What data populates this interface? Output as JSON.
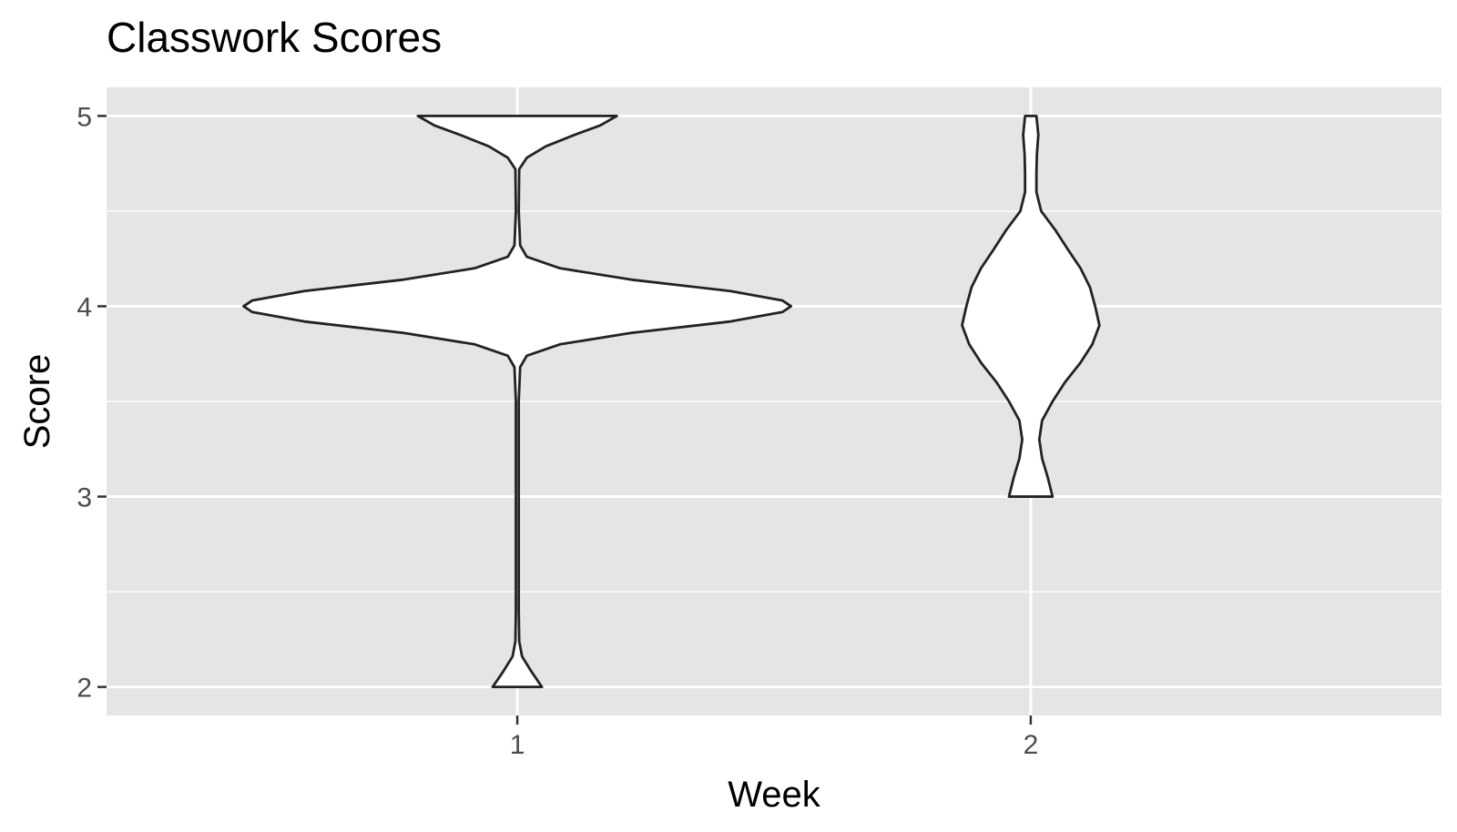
{
  "chart_data": {
    "type": "violin",
    "title": "Classwork Scores",
    "xlabel": "Week",
    "ylabel": "Score",
    "categories": [
      "1",
      "2"
    ],
    "ylim": [
      1.85,
      5.15
    ],
    "y_ticks": [
      2,
      3,
      4,
      5
    ],
    "y_minor_ticks": [
      2.5,
      3.5,
      4.5
    ],
    "grid": true,
    "legend": "none",
    "colors": {
      "panel": "#e5e5e5",
      "grid": "#ffffff",
      "fill": "#ffffff",
      "outline": "#222222",
      "tick_text": "#4d4d4d"
    },
    "series": [
      {
        "category": "1",
        "density": [
          [
            2.0,
            0.052
          ],
          [
            2.08,
            0.03
          ],
          [
            2.16,
            0.01
          ],
          [
            2.24,
            0.004
          ],
          [
            2.4,
            0.003
          ],
          [
            3.0,
            0.003
          ],
          [
            3.5,
            0.003
          ],
          [
            3.68,
            0.006
          ],
          [
            3.74,
            0.02
          ],
          [
            3.8,
            0.09
          ],
          [
            3.86,
            0.24
          ],
          [
            3.92,
            0.45
          ],
          [
            3.97,
            0.56
          ],
          [
            4.0,
            0.578
          ],
          [
            4.03,
            0.56
          ],
          [
            4.08,
            0.45
          ],
          [
            4.14,
            0.24
          ],
          [
            4.2,
            0.09
          ],
          [
            4.26,
            0.02
          ],
          [
            4.32,
            0.006
          ],
          [
            4.5,
            0.003
          ],
          [
            4.72,
            0.004
          ],
          [
            4.78,
            0.02
          ],
          [
            4.84,
            0.06
          ],
          [
            4.9,
            0.12
          ],
          [
            4.95,
            0.175
          ],
          [
            5.0,
            0.21
          ]
        ]
      },
      {
        "category": "2",
        "density": [
          [
            3.0,
            0.046
          ],
          [
            3.1,
            0.036
          ],
          [
            3.2,
            0.024
          ],
          [
            3.3,
            0.018
          ],
          [
            3.4,
            0.024
          ],
          [
            3.5,
            0.046
          ],
          [
            3.6,
            0.072
          ],
          [
            3.7,
            0.104
          ],
          [
            3.8,
            0.13
          ],
          [
            3.9,
            0.145
          ],
          [
            4.0,
            0.136
          ],
          [
            4.1,
            0.125
          ],
          [
            4.2,
            0.105
          ],
          [
            4.3,
            0.078
          ],
          [
            4.4,
            0.052
          ],
          [
            4.5,
            0.022
          ],
          [
            4.6,
            0.012
          ],
          [
            4.7,
            0.012
          ],
          [
            4.8,
            0.013
          ],
          [
            4.9,
            0.016
          ],
          [
            5.0,
            0.012
          ]
        ]
      }
    ]
  }
}
